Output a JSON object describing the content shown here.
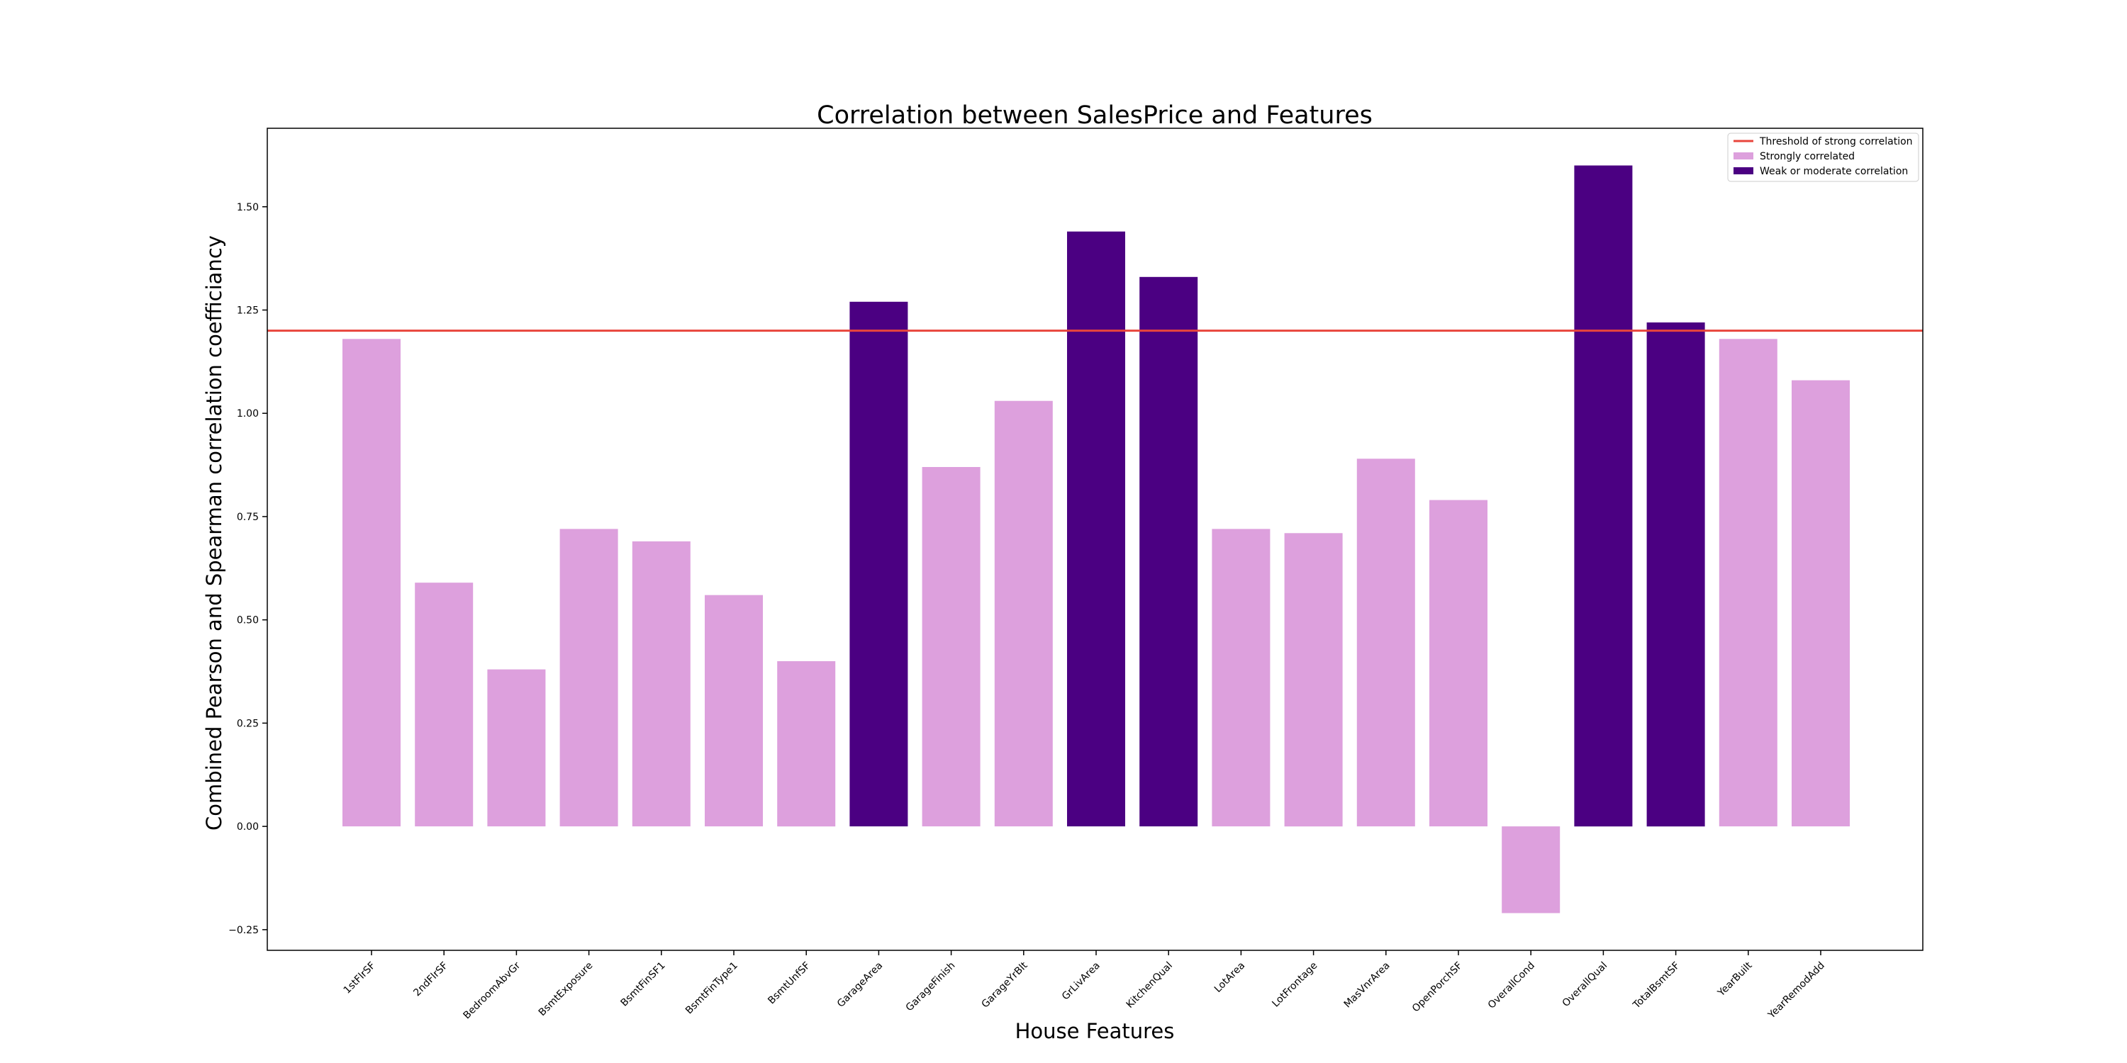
{
  "chart_data": {
    "type": "bar",
    "title": "Correlation between SalesPrice and Features",
    "xlabel": "House Features",
    "ylabel": "Combined Pearson and Spearman correlation coefficiancy",
    "ylim": [
      -0.3,
      1.69
    ],
    "yticks": [
      -0.25,
      0.0,
      0.25,
      0.5,
      0.75,
      1.0,
      1.25,
      1.5
    ],
    "ytick_labels": [
      "−0.25",
      "0.00",
      "0.25",
      "0.50",
      "0.75",
      "1.00",
      "1.25",
      "1.50"
    ],
    "grid": false,
    "categories": [
      "1stFlrSF",
      "2ndFlrSF",
      "BedroomAbvGr",
      "BsmtExposure",
      "BsmtFinSF1",
      "BsmtFinType1",
      "BsmtUnfSF",
      "GarageArea",
      "GarageFinish",
      "GarageYrBlt",
      "GrLivArea",
      "KitchenQual",
      "LotArea",
      "LotFrontage",
      "MasVnrArea",
      "OpenPorchSF",
      "OverallCond",
      "OverallQual",
      "TotalBsmtSF",
      "YearBuilt",
      "YearRemodAdd"
    ],
    "values": [
      1.18,
      0.59,
      0.38,
      0.72,
      0.69,
      0.56,
      0.4,
      1.27,
      0.87,
      1.03,
      1.44,
      1.33,
      0.72,
      0.71,
      0.89,
      0.79,
      -0.21,
      1.6,
      1.22,
      1.18,
      1.08
    ],
    "bar_groups": [
      "Strongly correlated",
      "Strongly correlated",
      "Strongly correlated",
      "Strongly correlated",
      "Strongly correlated",
      "Strongly correlated",
      "Strongly correlated",
      "Weak or moderate correlation",
      "Strongly correlated",
      "Strongly correlated",
      "Weak or moderate correlation",
      "Weak or moderate correlation",
      "Strongly correlated",
      "Strongly correlated",
      "Strongly correlated",
      "Strongly correlated",
      "Strongly correlated",
      "Weak or moderate correlation",
      "Weak or moderate correlation",
      "Strongly correlated",
      "Strongly correlated"
    ],
    "threshold": {
      "name": "Threshold of strong correlation",
      "value": 1.2,
      "color": "#e8453c"
    },
    "legend": {
      "placement": "top-right",
      "entries": [
        {
          "label": "Threshold of strong correlation",
          "kind": "line",
          "color": "#e8453c"
        },
        {
          "label": "Strongly correlated",
          "kind": "patch",
          "color": "#dda0dd"
        },
        {
          "label": "Weak or moderate correlation",
          "kind": "patch",
          "color": "#4b0082"
        }
      ]
    }
  }
}
